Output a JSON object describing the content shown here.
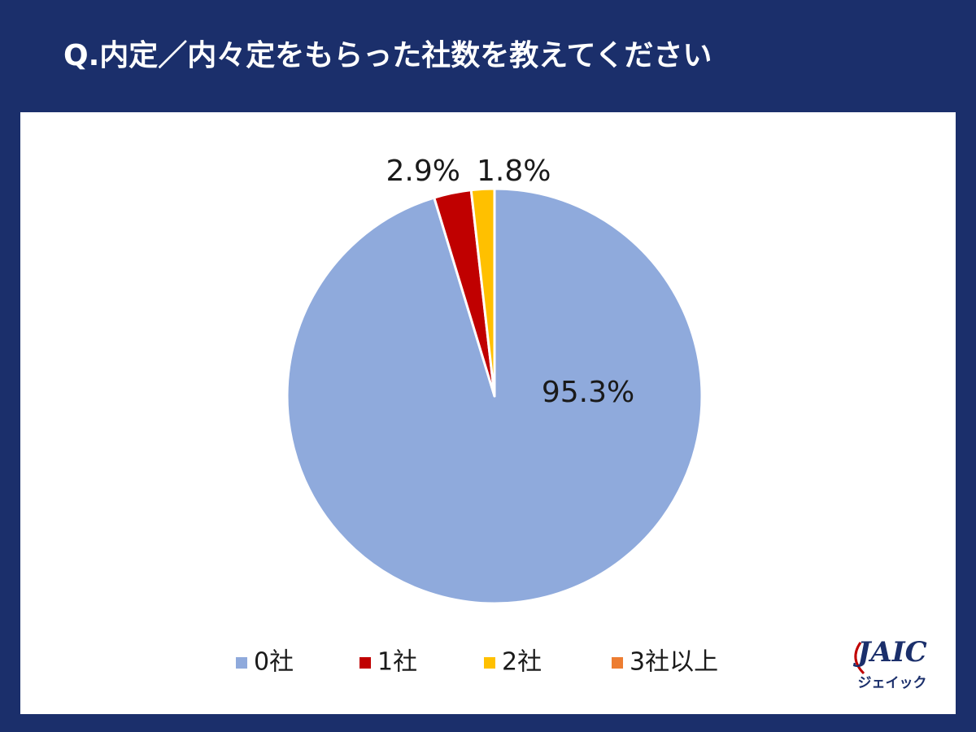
{
  "chart_data": {
    "type": "pie",
    "title": "Q.内定／内々定をもらった社数を教えてください",
    "categories": [
      "0社",
      "1社",
      "2社",
      "3社以上"
    ],
    "values": [
      95.3,
      2.9,
      1.8,
      0
    ],
    "value_labels": [
      "95.3%",
      "2.9%",
      "1.8%",
      null
    ],
    "colors": [
      "#8faadc",
      "#c00000",
      "#ffc000",
      "#ed7d31"
    ],
    "legend": "bottom"
  },
  "logo": {
    "name": "JAIC",
    "kana": "ジェイック"
  }
}
